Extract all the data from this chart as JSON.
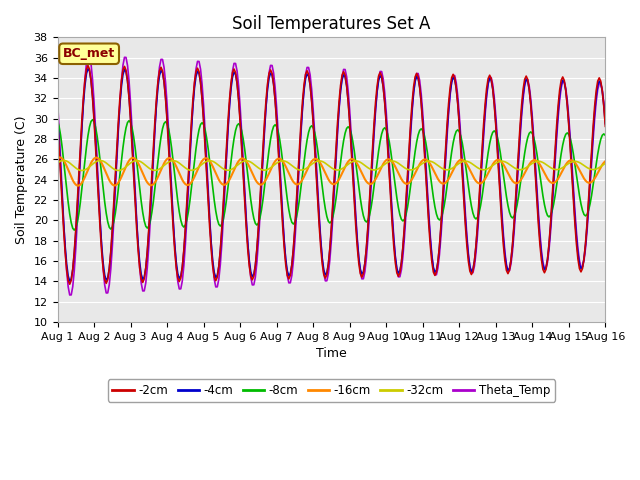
{
  "title": "Soil Temperatures Set A",
  "xlabel": "Time",
  "ylabel": "Soil Temperature (C)",
  "ylim": [
    10,
    38
  ],
  "xlim": [
    0,
    15
  ],
  "xtick_labels": [
    "Aug 1",
    "Aug 2",
    "Aug 3",
    "Aug 4",
    "Aug 5",
    "Aug 6",
    "Aug 7",
    "Aug 8",
    "Aug 9",
    "Aug 10",
    "Aug 11",
    "Aug 12",
    "Aug 13",
    "Aug 14",
    "Aug 15",
    "Aug 16"
  ],
  "ytick_values": [
    10,
    12,
    14,
    16,
    18,
    20,
    22,
    24,
    26,
    28,
    30,
    32,
    34,
    36,
    38
  ],
  "colors": {
    "neg2cm": "#cc0000",
    "neg4cm": "#0000cc",
    "neg8cm": "#00bb00",
    "neg16cm": "#ff8800",
    "neg32cm": "#cccc00",
    "theta": "#aa00cc"
  },
  "labels": {
    "neg2cm": "-2cm",
    "neg4cm": "-4cm",
    "neg8cm": "-8cm",
    "neg16cm": "-16cm",
    "neg32cm": "-32cm",
    "theta": "Theta_Temp"
  },
  "annotation_text": "BC_met",
  "bg_color": "#e8e8e8",
  "grid_color": "#ffffff",
  "title_fontsize": 12,
  "label_fontsize": 9,
  "tick_fontsize": 8
}
